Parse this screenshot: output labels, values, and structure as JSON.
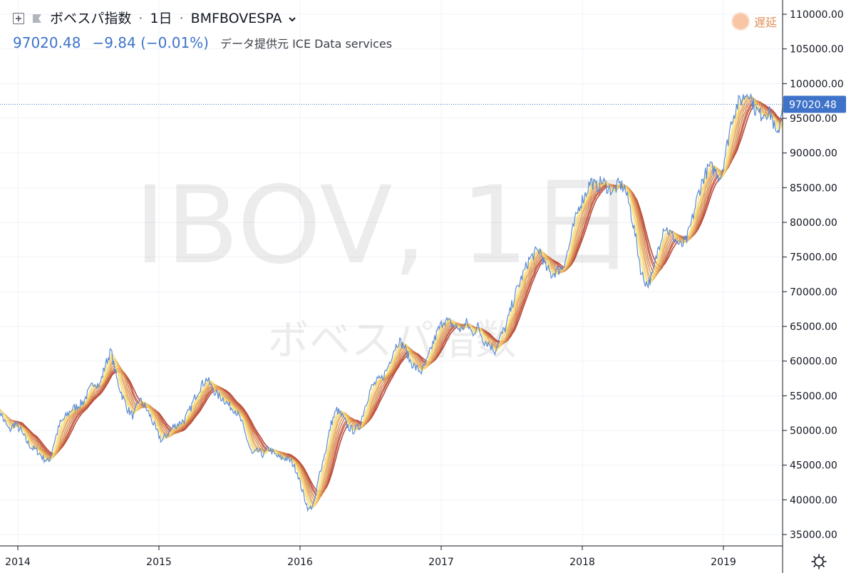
{
  "header": {
    "symbol_name": "ボベスパ指数",
    "interval": "1日",
    "ticker": "BMFBOVESPA",
    "separator": "·",
    "last_price": "97020.48",
    "change": "−9.84 (−0.01%)",
    "provider": "データ提供元 ICE Data services",
    "delay_label": "遅延"
  },
  "watermark": {
    "main": "IBOV, 1日",
    "sub": "ボベスパ指数"
  },
  "price_tag": "97020.48",
  "colors": {
    "price_line": "#5b8bd6",
    "price_tag_bg": "#3e73c9",
    "ribbon_fast": "#fce373",
    "ribbon_slow": "#b4342a",
    "grid": "#f0f3fa"
  },
  "icons": [
    "plus-icon",
    "flag-icon",
    "chevron-down-icon",
    "gear-icon"
  ],
  "chart_data": {
    "type": "line",
    "x_ticks": [
      "2014",
      "2015",
      "2016",
      "2017",
      "2018",
      "2019"
    ],
    "x_tick_dates": [
      2014.0,
      2015.0,
      2016.0,
      2017.0,
      2018.0,
      2019.0
    ],
    "y_ticks": [
      "35000.00",
      "40000.00",
      "45000.00",
      "50000.00",
      "55000.00",
      "60000.00",
      "65000.00",
      "70000.00",
      "75000.00",
      "80000.00",
      "85000.00",
      "90000.00",
      "95000.00",
      "100000.00",
      "105000.00",
      "110000.00"
    ],
    "ylim": [
      33000,
      111500
    ],
    "xlim": [
      2013.86,
      2019.42
    ],
    "last_value": 97020.48,
    "series": [
      {
        "role": "price",
        "x": [
          2013.86,
          2013.9,
          2013.94,
          2013.98,
          2014.02,
          2014.06,
          2014.1,
          2014.14,
          2014.18,
          2014.22,
          2014.26,
          2014.3,
          2014.34,
          2014.38,
          2014.42,
          2014.46,
          2014.5,
          2014.54,
          2014.58,
          2014.62,
          2014.66,
          2014.7,
          2014.74,
          2014.78,
          2014.82,
          2014.86,
          2014.9,
          2014.94,
          2014.98,
          2015.02,
          2015.06,
          2015.1,
          2015.14,
          2015.18,
          2015.22,
          2015.26,
          2015.3,
          2015.34,
          2015.38,
          2015.42,
          2015.46,
          2015.5,
          2015.54,
          2015.58,
          2015.62,
          2015.66,
          2015.7,
          2015.74,
          2015.78,
          2015.82,
          2015.86,
          2015.9,
          2015.94,
          2015.98,
          2016.02,
          2016.06,
          2016.1,
          2016.14,
          2016.18,
          2016.22,
          2016.26,
          2016.3,
          2016.34,
          2016.38,
          2016.42,
          2016.46,
          2016.5,
          2016.54,
          2016.58,
          2016.62,
          2016.66,
          2016.7,
          2016.74,
          2016.78,
          2016.82,
          2016.86,
          2016.9,
          2016.94,
          2016.98,
          2017.02,
          2017.06,
          2017.1,
          2017.14,
          2017.18,
          2017.22,
          2017.26,
          2017.3,
          2017.34,
          2017.38,
          2017.42,
          2017.46,
          2017.5,
          2017.54,
          2017.58,
          2017.62,
          2017.66,
          2017.7,
          2017.74,
          2017.78,
          2017.82,
          2017.86,
          2017.9,
          2017.94,
          2017.98,
          2018.02,
          2018.06,
          2018.1,
          2018.14,
          2018.18,
          2018.22,
          2018.26,
          2018.3,
          2018.34,
          2018.38,
          2018.42,
          2018.46,
          2018.5,
          2018.54,
          2018.58,
          2018.62,
          2018.66,
          2018.7,
          2018.74,
          2018.78,
          2018.82,
          2018.86,
          2018.9,
          2018.94,
          2018.98,
          2019.02,
          2019.06,
          2019.1,
          2019.14,
          2019.18,
          2019.22,
          2019.26,
          2019.3,
          2019.34,
          2019.38,
          2019.42
        ],
        "values": [
          53500,
          51500,
          50000,
          51000,
          50000,
          48500,
          47500,
          47000,
          46000,
          45500,
          48500,
          51000,
          52000,
          53000,
          53500,
          54000,
          55500,
          57000,
          56500,
          59500,
          61500,
          57500,
          55000,
          53000,
          52000,
          54500,
          53500,
          52000,
          50000,
          48500,
          49500,
          50500,
          51000,
          51500,
          53000,
          55000,
          56500,
          57500,
          56000,
          55000,
          54500,
          53500,
          53000,
          51500,
          49000,
          46500,
          47000,
          46500,
          47500,
          46500,
          46000,
          46000,
          45500,
          44000,
          41000,
          38500,
          39500,
          44000,
          47000,
          51000,
          53000,
          52000,
          50500,
          50000,
          50500,
          53500,
          56000,
          57000,
          57500,
          59000,
          61500,
          63000,
          62000,
          60000,
          59000,
          58500,
          60000,
          62500,
          64500,
          66000,
          65500,
          65000,
          64500,
          65500,
          64000,
          65000,
          63000,
          62500,
          61500,
          63500,
          65000,
          68000,
          70500,
          72500,
          74500,
          75500,
          76000,
          73500,
          72500,
          73000,
          73500,
          76000,
          79500,
          82500,
          84000,
          86000,
          85000,
          86000,
          85000,
          84500,
          85500,
          85000,
          82000,
          77500,
          72500,
          71000,
          72500,
          76500,
          79500,
          78500,
          77500,
          76500,
          77500,
          80500,
          84000,
          86500,
          88000,
          87500,
          86500,
          90500,
          95000,
          97000,
          98000,
          99000,
          96500,
          95500,
          96000,
          95500,
          92000,
          97000
        ]
      },
      {
        "role": "ribbon_fast",
        "lag": 0.5
      },
      {
        "role": "ribbon_slow",
        "lag": 4.2
      }
    ]
  }
}
